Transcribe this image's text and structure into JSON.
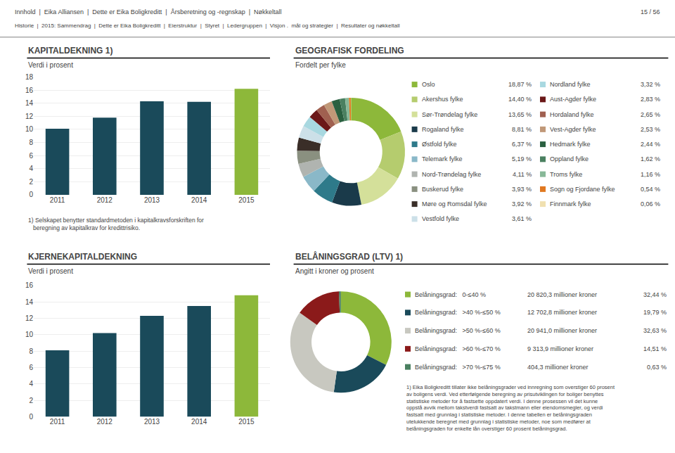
{
  "annotations": [
    "Innhold  |  Eika Alliansen  |  Dette er Eika Boligkreditt  |  Årsberetning og -regnskap  |  Nøkkeltall",
    "Historie  |  2015: Sammendrag  |  Dette er Eika Boligkreditt  |  Eierstruktur  |  Styret  |  Ledergruppen  |  Visjon .  mål og strategier  |  Resultater og nøkkeltall",
    "15 / 56"
  ],
  "chart_data": [
    {
      "type": "bar",
      "title": "KAPITALDEKNING 1)",
      "subtitle": "Verdi i prosent",
      "categories": [
        "2011",
        "2012",
        "2013",
        "2014",
        "2015"
      ],
      "values": [
        10.1,
        11.8,
        14.3,
        14.2,
        16.2
      ],
      "colors": [
        "#1a4a5a",
        "#1a4a5a",
        "#1a4a5a",
        "#1a4a5a",
        "#8db83a"
      ],
      "ylim": [
        0,
        18
      ],
      "yticks": [
        0,
        2,
        4,
        6,
        8,
        10,
        12,
        14,
        16,
        18
      ],
      "grid": true,
      "annotations": [
        "1) Selskapet benytter standardmetoden i kapitalkravsforskriften for\n   beregning av kapitalkrav for kredittrisiko."
      ]
    },
    {
      "type": "bar",
      "title": "KJERNEKAPITALDEKNING",
      "subtitle": "Verdi i prosent",
      "categories": [
        "2011",
        "2012",
        "2013",
        "2014",
        "2015"
      ],
      "values": [
        8.1,
        10.2,
        12.3,
        13.5,
        14.8
      ],
      "colors": [
        "#1a4a5a",
        "#1a4a5a",
        "#1a4a5a",
        "#1a4a5a",
        "#8db83a"
      ],
      "ylim": [
        0,
        16
      ],
      "yticks": [
        0,
        2,
        4,
        6,
        8,
        10,
        12,
        14,
        16
      ],
      "grid": true
    },
    {
      "type": "pie",
      "title": "GEOGRAFISK FORDELING",
      "subtitle": "Fordelt per fylke",
      "categories": [
        "Oslo",
        "Akershus fylke",
        "Sør-Trøndelag fylke",
        "Rogaland fylke",
        "Østfold fylke",
        "Telemark fylke",
        "Nord-Trøndelag fylke",
        "Buskerud fylke",
        "Møre og Romsdal fylke",
        "Vestfold fylke",
        "Nordland fylke",
        "Aust-Agder fylke",
        "Hordaland fylke",
        "Vest-Agder fylke",
        "Hedmark fylke",
        "Oppland fylke",
        "Troms fylke",
        "Sogn og Fjordane fylke",
        "Finnmark fylke"
      ],
      "values": [
        18.87,
        14.4,
        13.65,
        8.81,
        6.37,
        5.19,
        4.11,
        3.93,
        3.92,
        3.61,
        3.32,
        2.83,
        2.65,
        2.53,
        2.44,
        1.62,
        1.16,
        0.54,
        0.06
      ],
      "value_labels": [
        "18,87 %",
        "14,40 %",
        "13,65 %",
        "8,81 %",
        "6,37 %",
        "5,19 %",
        "4,11 %",
        "3,93 %",
        "3,92 %",
        "3,61 %",
        "3,32 %",
        "2,83 %",
        "2,65 %",
        "2,53 %",
        "2,44 %",
        "1,62 %",
        "1,16 %",
        "0,54 %",
        "0,06 %"
      ],
      "colors": [
        "#8db83a",
        "#b5cc6e",
        "#d4e09a",
        "#1a3a4a",
        "#2e7a8a",
        "#8ab8c8",
        "#b0b4b0",
        "#8a9080",
        "#3a2e28",
        "#cce0e8",
        "#a8d8e0",
        "#6b1818",
        "#a06050",
        "#c09878",
        "#2a6040",
        "#4a8060",
        "#88b898",
        "#e07820",
        "#f0e0b0"
      ]
    },
    {
      "type": "pie",
      "title": "BELÅNINGSGRAD (LTV) 1)",
      "subtitle": "Angitt i kroner og prosent",
      "categories": [
        "Belåningsgrad:   0-≤40 %",
        "Belåningsgrad:   >40 %-≤50 %",
        "Belåningsgrad:   >50 %-≤60 %",
        "Belåningsgrad:   >60 %-≤70 %",
        "Belåningsgrad:   >70 %-≤75 %"
      ],
      "values": [
        32.44,
        19.79,
        32.63,
        14.51,
        0.63
      ],
      "value_labels": [
        "32,44 %",
        "19,79 %",
        "32,63 %",
        "14,51 %",
        "0,63 %"
      ],
      "amounts": [
        "20 820,3 millioner kroner",
        "12 702,8 millioner kroner",
        "20 941,0 millioner kroner",
        "9 313,9 millioner kroner",
        "404,3 millioner kroner"
      ],
      "colors": [
        "#8db83a",
        "#1a4a5a",
        "#c8c8c0",
        "#8b1a1a",
        "#4a8060"
      ],
      "annotations": [
        "1) Eika Boligkreditt tillater ikke belåningsgrader ved innregning som overstiger 60 prosent\nav boligens verdi. Ved etterfølgende beregning av prisutviklingen for boliger benyttes\nstatistiske metoder for å fastsette oppdatert verdi. I denne prosessen vil det kunne\noppstå avvik mellom takstverdi fastsatt av takstmann eller eiendomsmegler, og verdi\nfastsatt med grunnlag i statistiske metoder. I denne tabellen er belåningsgraden\nutelukkende beregnet med grunnlag i statistiske metoder, noe som medfører at\nbelåningsgraden for enkelte lån overstiger 60 prosent belåningsgrad."
      ]
    }
  ]
}
